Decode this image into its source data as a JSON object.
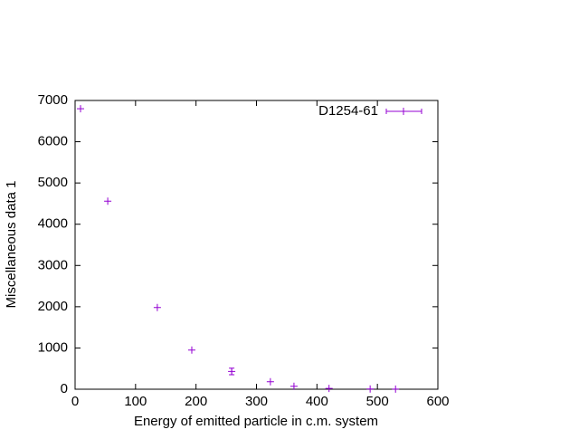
{
  "chart_data": {
    "type": "scatter",
    "xlabel": "Energy of emitted particle in c.m. system",
    "ylabel": "Miscellaneous data 1",
    "xlim": [
      0,
      600
    ],
    "xticks": [
      0,
      100,
      200,
      300,
      400,
      500,
      600
    ],
    "ylim": [
      0,
      7000
    ],
    "yticks": [
      0,
      1000,
      2000,
      3000,
      4000,
      5000,
      6000,
      7000
    ],
    "legend": "top-right",
    "series": [
      {
        "name": "D1254-61",
        "color": "#9400d3",
        "x": [
          9,
          54,
          136,
          193,
          259,
          323,
          362,
          420,
          488,
          530
        ],
        "values": [
          6800,
          4560,
          1980,
          950,
          430,
          180,
          70,
          20,
          5,
          2
        ],
        "yerr": [
          null,
          null,
          null,
          null,
          80,
          null,
          null,
          null,
          null,
          null
        ]
      }
    ]
  }
}
